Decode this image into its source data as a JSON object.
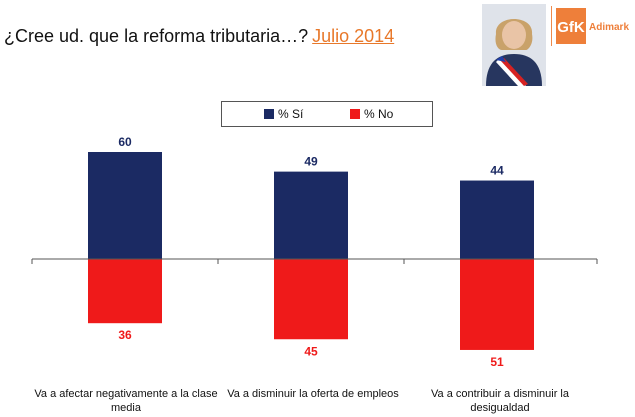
{
  "header": {
    "title": "¿Cree ud. que la reforma tributaria…?",
    "date": "Julio 2014"
  },
  "brand": {
    "logo_text": "GfK",
    "logo_sub": "Adimark",
    "portrait_icon": "person-portrait-icon",
    "accent": "#ee7f3a"
  },
  "chart_data": {
    "type": "bar",
    "title": "¿Cree ud. que la reforma tributaria…? Julio 2014",
    "categories": [
      "Va a afectar negativamente a la clase media",
      "Va a disminuir la oferta de empleos",
      "Va a contribuir a disminuir la desigualdad"
    ],
    "series": [
      {
        "name": "% Sí",
        "values": [
          60,
          49,
          44
        ],
        "color": "#1b2a63",
        "direction": "up"
      },
      {
        "name": "% No",
        "values": [
          36,
          45,
          51
        ],
        "color": "#ef1a1a",
        "direction": "down"
      }
    ],
    "value_labels": {
      "si": [
        "60",
        "49",
        "44"
      ],
      "no": [
        "36",
        "45",
        "51"
      ]
    },
    "legend": {
      "position": "top-center",
      "items": [
        "% Sí",
        "% No"
      ]
    },
    "xlabel": "",
    "ylabel": "",
    "ylim": [
      -60,
      60
    ],
    "grid": false
  }
}
